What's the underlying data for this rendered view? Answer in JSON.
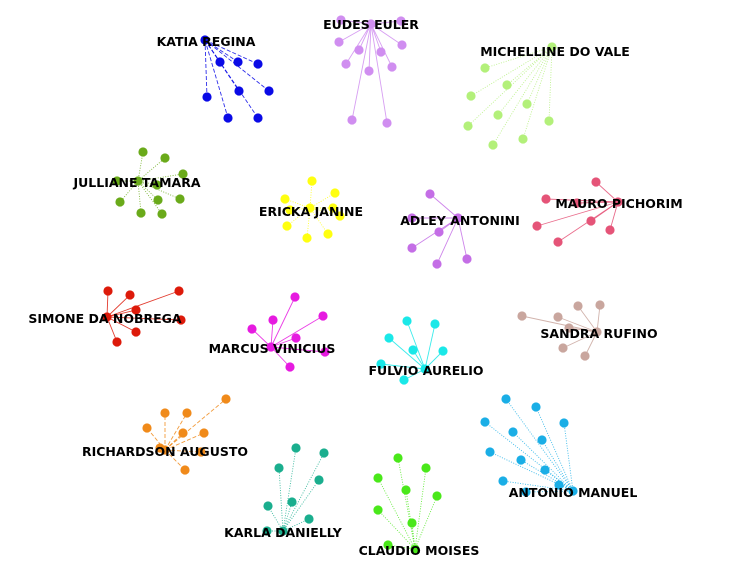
{
  "clusters": [
    {
      "label": "KATIA REGINA",
      "color": "#0a0ae6",
      "line_style": "dashed",
      "members": 9
    },
    {
      "label": "EUDES EULER",
      "color": "#d08ef0",
      "line_style": "solid",
      "members": 13
    },
    {
      "label": "MICHELLINE DO VALE",
      "color": "#b3f07a",
      "line_style": "dotted",
      "members": 10
    },
    {
      "label": "JULLIANE TAMARA",
      "color": "#6aaa1a",
      "line_style": "dotted",
      "members": 11
    },
    {
      "label": "ERICKA JANINE",
      "color": "#ffff10",
      "line_style": "dotted",
      "members": 11
    },
    {
      "label": "ADLEY ANTONINI",
      "color": "#c46ee6",
      "line_style": "solid",
      "members": 7
    },
    {
      "label": "MAURO PICHORIM",
      "color": "#e55478",
      "line_style": "solid",
      "members": 9
    },
    {
      "label": "SIMONE DA NOBREGA",
      "color": "#dd1a0a",
      "line_style": "solid",
      "members": 8
    },
    {
      "label": "MARCUS VINICIUS",
      "color": "#e61ae0",
      "line_style": "solid",
      "members": 8
    },
    {
      "label": "FULVIO AURELIO",
      "color": "#1ae8e8",
      "line_style": "solid",
      "members": 8
    },
    {
      "label": "SANDRA RUFINO",
      "color": "#c9a69e",
      "line_style": "solid",
      "members": 8
    },
    {
      "label": "RICHARDSON AUGUSTO",
      "color": "#f08a1a",
      "line_style": "dashed",
      "members": 10
    },
    {
      "label": "KARLA DANIELLY",
      "color": "#1aae8e",
      "line_style": "dotted",
      "members": 9
    },
    {
      "label": "CLAUDIO MOISES",
      "color": "#4ae81a",
      "line_style": "dotted",
      "members": 9
    },
    {
      "label": "ANTONIO MANUEL",
      "color": "#1aaee6",
      "line_style": "dotted",
      "members": 13
    }
  ]
}
